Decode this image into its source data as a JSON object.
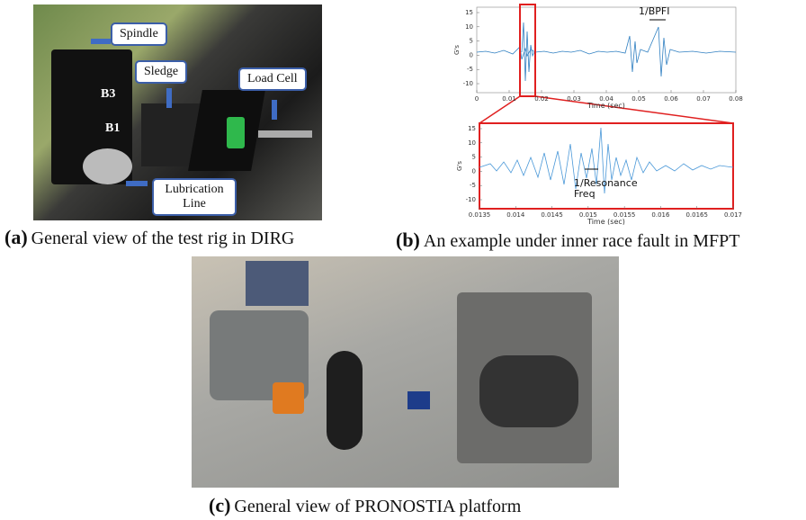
{
  "panels": [
    {
      "label": "(a)",
      "caption": "General view of the test rig in DIRG",
      "annotations": {
        "spindle": "Spindle",
        "sledge": "Sledge",
        "load_cell": "Load Cell",
        "b3": "B3",
        "b1": "B1",
        "lubrication": "Lubrication Line"
      }
    },
    {
      "label": "(b)",
      "caption": "An example under inner race fault in MFPT",
      "plots": [
        {
          "ylabel": "G's",
          "xlabel": "Time (sec)",
          "annotation": "1/BPFI",
          "yticks": [
            15,
            10,
            5,
            0,
            -5,
            -10
          ],
          "xticks": [
            0,
            0.01,
            0.02,
            0.03,
            0.04,
            0.05,
            0.06,
            0.07,
            0.08
          ]
        },
        {
          "ylabel": "G's",
          "xlabel": "Time (sec)",
          "annotation": "1/Resonance Freq",
          "yticks": [
            15,
            10,
            5,
            0,
            -5,
            -10
          ],
          "xticks": [
            0.0135,
            0.014,
            0.0145,
            0.015,
            0.0155,
            0.016,
            0.0165,
            0.017
          ]
        }
      ]
    },
    {
      "label": "(c)",
      "caption": "General view of PRONOSTIA platform"
    }
  ]
}
